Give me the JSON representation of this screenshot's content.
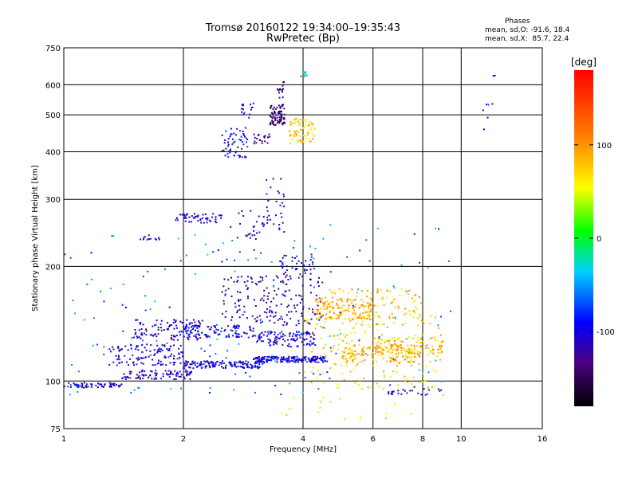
{
  "header": {
    "title_line1": "Tromsø 20160122  19:34:00–19:35:43",
    "title_line2": "RwPretec (Bp)"
  },
  "stats": {
    "heading": "Phases",
    "line_o": "mean, sd,O: -91.6, 18.4",
    "line_x": "mean, sd,X:  85.7, 22.4"
  },
  "colorbar": {
    "label": "[deg]",
    "ticks": [
      "100",
      "0",
      "-100"
    ],
    "tick_values": [
      100,
      0,
      -100
    ],
    "range": [
      -180,
      180
    ]
  },
  "chart_data": {
    "type": "scatter",
    "title": "Tromsø 20160122  19:34:00–19:35:43",
    "subtitle": "RwPretec (Bp)",
    "xlabel": "Frequency [MHz]",
    "ylabel": "Stationary phase Virtual Height [km]",
    "x_scale": "log",
    "y_scale": "log",
    "xlim": [
      1,
      16
    ],
    "ylim": [
      75,
      750
    ],
    "x_major_ticks": [
      1,
      2,
      4,
      8,
      16
    ],
    "x_minor_ticks": [
      6,
      10
    ],
    "x_tick_labels": [
      "1",
      "2",
      "4",
      "6",
      "8",
      "10",
      "16"
    ],
    "y_ticks": [
      75,
      100,
      200,
      300,
      400,
      500,
      600,
      750
    ],
    "y_tick_labels": [
      "75",
      "100",
      "200",
      "300",
      "400",
      "500",
      "600",
      "750"
    ],
    "grid": true,
    "color_by": "phase [deg]",
    "trace_groups": [
      {
        "f": [
          1.0,
          1.4
        ],
        "h": [
          96,
          99
        ],
        "phase": -105,
        "n": 60
      },
      {
        "f": [
          1.4,
          2.1
        ],
        "h": [
          101,
          107
        ],
        "phase": -110,
        "n": 90
      },
      {
        "f": [
          2.0,
          3.2
        ],
        "h": [
          108,
          113
        ],
        "phase": -100,
        "n": 140
      },
      {
        "f": [
          3.0,
          4.6
        ],
        "h": [
          112,
          116
        ],
        "phase": -100,
        "n": 170
      },
      {
        "f": [
          1.3,
          2.0
        ],
        "h": [
          110,
          125
        ],
        "phase": -105,
        "n": 120
      },
      {
        "f": [
          1.5,
          2.3
        ],
        "h": [
          128,
          145
        ],
        "phase": -110,
        "n": 110
      },
      {
        "f": [
          2.0,
          3.0
        ],
        "h": [
          130,
          140
        ],
        "phase": -100,
        "n": 90
      },
      {
        "f": [
          3.0,
          4.3
        ],
        "h": [
          123,
          135
        ],
        "phase": -100,
        "n": 120
      },
      {
        "f": [
          2.5,
          4.5
        ],
        "h": [
          140,
          190
        ],
        "phase": -120,
        "n": 180
      },
      {
        "f": [
          3.5,
          4.3
        ],
        "h": [
          190,
          215
        ],
        "phase": -100,
        "n": 40
      },
      {
        "f": [
          3.2,
          3.6
        ],
        "h": [
          250,
          340
        ],
        "phase": -110,
        "n": 30
      },
      {
        "f": [
          2.7,
          3.2
        ],
        "h": [
          230,
          280
        ],
        "phase": -120,
        "n": 25
      },
      {
        "f": [
          1.9,
          2.5
        ],
        "h": [
          260,
          275
        ],
        "phase": -110,
        "n": 50
      },
      {
        "f": [
          1.55,
          1.75
        ],
        "h": [
          235,
          242
        ],
        "phase": -110,
        "n": 12
      },
      {
        "f": [
          3.3,
          3.6
        ],
        "h": [
          470,
          530
        ],
        "phase": -140,
        "n": 80
      },
      {
        "f": [
          3.45,
          3.6
        ],
        "h": [
          530,
          615
        ],
        "phase": -140,
        "n": 15
      },
      {
        "f": [
          2.5,
          2.9
        ],
        "h": [
          385,
          470
        ],
        "phase": -100,
        "n": 60
      },
      {
        "f": [
          2.8,
          3.0
        ],
        "h": [
          480,
          540
        ],
        "phase": -100,
        "n": 15
      },
      {
        "f": [
          3.0,
          3.3
        ],
        "h": [
          420,
          445
        ],
        "phase": -130,
        "n": 20
      },
      {
        "f": [
          3.7,
          4.3
        ],
        "h": [
          420,
          490
        ],
        "phase": 80,
        "n": 70
      },
      {
        "f": [
          3.95,
          4.1
        ],
        "h": [
          630,
          650
        ],
        "phase": -40,
        "n": 10
      },
      {
        "f": [
          4.3,
          6.0
        ],
        "h": [
          145,
          165
        ],
        "phase": 90,
        "n": 120
      },
      {
        "f": [
          5.0,
          8.0
        ],
        "h": [
          112,
          125
        ],
        "phase": 85,
        "n": 140
      },
      {
        "f": [
          6.0,
          9.0
        ],
        "h": [
          118,
          130
        ],
        "phase": 90,
        "n": 100
      },
      {
        "f": [
          4.5,
          8.0
        ],
        "h": [
          140,
          175
        ],
        "phase": 80,
        "n": 120
      },
      {
        "f": [
          4.0,
          9.0
        ],
        "h": [
          95,
          150
        ],
        "phase": 70,
        "n": 180
      },
      {
        "f": [
          6.5,
          9.0
        ],
        "h": [
          92,
          97
        ],
        "phase": -100,
        "n": 25
      },
      {
        "f": [
          3.5,
          9.5
        ],
        "h": [
          78,
          95
        ],
        "phase": 60,
        "n": 18
      },
      {
        "f": [
          1.0,
          9.5
        ],
        "h": [
          90,
          260
        ],
        "phase": -60,
        "n": 160
      },
      {
        "f": [
          11.3,
          12.2
        ],
        "h": [
          430,
          650
        ],
        "phase": -90,
        "n": 8
      }
    ]
  }
}
